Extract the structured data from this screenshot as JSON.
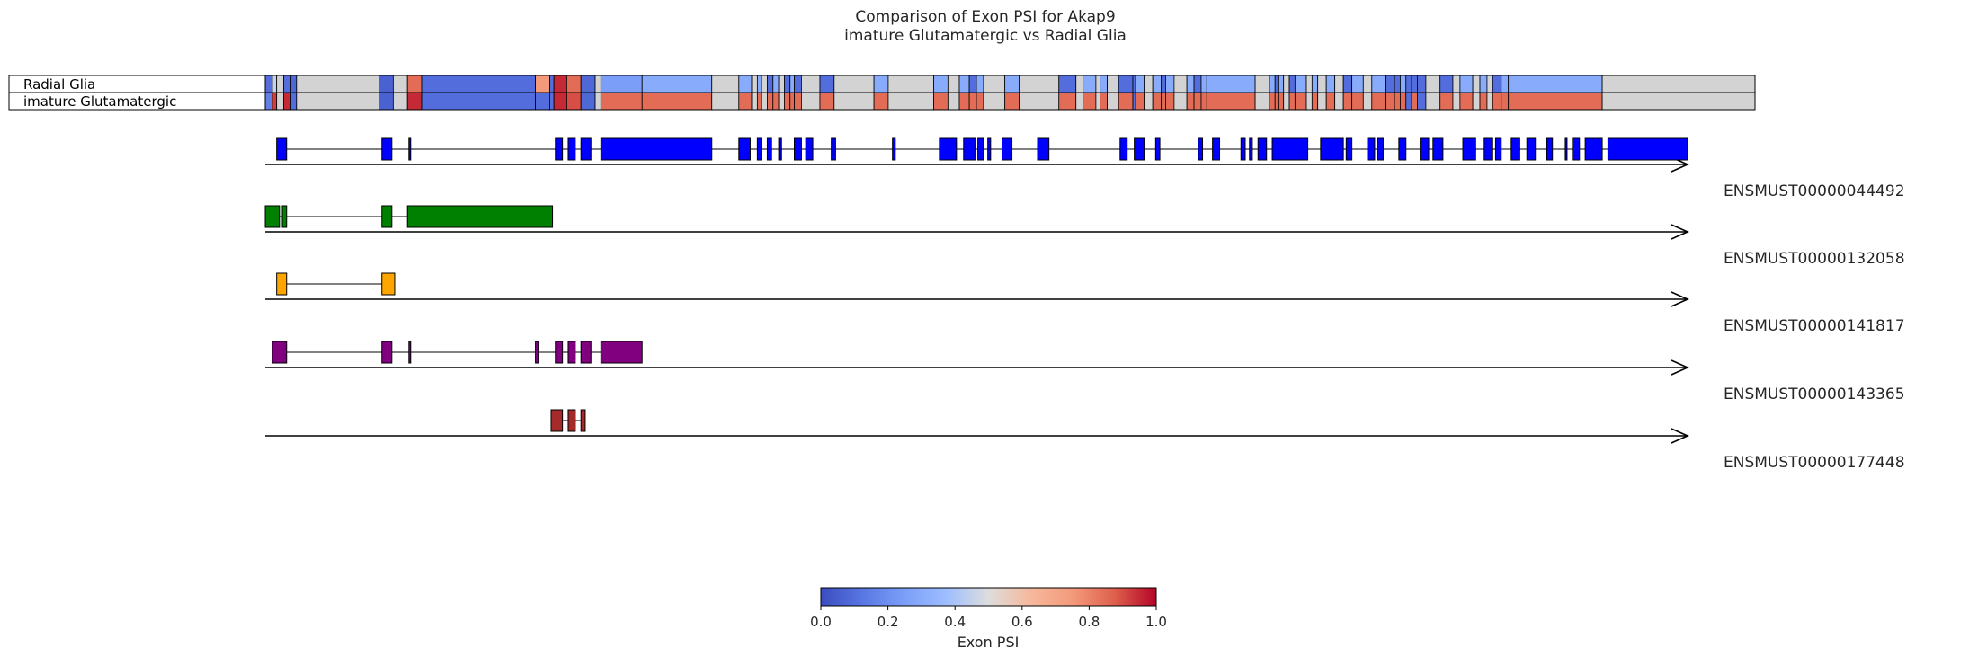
{
  "chart_data": {
    "type": "heatmap",
    "title": "Comparison of Exon PSI for Akap9",
    "subtitle": "imature Glutamatergic vs Radial Glia",
    "conditions": [
      {
        "name": "Radial Glia"
      },
      {
        "name": "imature Glutamatergic"
      }
    ],
    "genomic_span": [
      0,
      1000
    ],
    "psi_segments": [
      {
        "start": 0,
        "end": 5,
        "psi": [
          0.1,
          0.15
        ]
      },
      {
        "start": 5,
        "end": 8,
        "psi": [
          0.45,
          0.92
        ]
      },
      {
        "start": 8,
        "end": 13,
        "psi": [
          null,
          null
        ]
      },
      {
        "start": 13,
        "end": 18,
        "psi": [
          0.1,
          0.95
        ]
      },
      {
        "start": 18,
        "end": 22,
        "psi": [
          0.08,
          0.1
        ]
      },
      {
        "start": 22,
        "end": 80,
        "psi": [
          null,
          null
        ]
      },
      {
        "start": 80,
        "end": 90,
        "psi": [
          0.06,
          0.06
        ]
      },
      {
        "start": 90,
        "end": 100,
        "psi": [
          null,
          null
        ]
      },
      {
        "start": 100,
        "end": 110,
        "psi": [
          0.85,
          0.95
        ]
      },
      {
        "start": 110,
        "end": 190,
        "psi": [
          0.1,
          0.1
        ]
      },
      {
        "start": 190,
        "end": 200,
        "psi": [
          0.75,
          0.1
        ]
      },
      {
        "start": 200,
        "end": 203,
        "psi": [
          0.1,
          0.1
        ]
      },
      {
        "start": 203,
        "end": 212,
        "psi": [
          0.95,
          0.95
        ]
      },
      {
        "start": 212,
        "end": 222,
        "psi": [
          0.85,
          0.9
        ]
      },
      {
        "start": 222,
        "end": 232,
        "psi": [
          0.08,
          0.08
        ]
      },
      {
        "start": 232,
        "end": 236,
        "psi": [
          null,
          null
        ]
      },
      {
        "start": 236,
        "end": 265,
        "psi": [
          0.25,
          0.85
        ]
      },
      {
        "start": 265,
        "end": 314,
        "psi": [
          0.3,
          0.85
        ]
      },
      {
        "start": 314,
        "end": 333,
        "psi": [
          null,
          null
        ]
      },
      {
        "start": 333,
        "end": 342,
        "psi": [
          0.3,
          0.85
        ]
      },
      {
        "start": 342,
        "end": 346,
        "psi": [
          null,
          null
        ]
      },
      {
        "start": 346,
        "end": 349,
        "psi": [
          0.3,
          0.85
        ]
      },
      {
        "start": 349,
        "end": 353,
        "psi": [
          null,
          null
        ]
      },
      {
        "start": 353,
        "end": 357,
        "psi": [
          0.1,
          0.85
        ]
      },
      {
        "start": 357,
        "end": 361,
        "psi": [
          0.3,
          0.85
        ]
      },
      {
        "start": 361,
        "end": 365,
        "psi": [
          null,
          null
        ]
      },
      {
        "start": 365,
        "end": 369,
        "psi": [
          0.1,
          0.85
        ]
      },
      {
        "start": 369,
        "end": 372,
        "psi": [
          0.3,
          0.85
        ]
      },
      {
        "start": 372,
        "end": 377,
        "psi": [
          0.1,
          0.85
        ]
      },
      {
        "start": 377,
        "end": 390,
        "psi": [
          null,
          null
        ]
      },
      {
        "start": 390,
        "end": 400,
        "psi": [
          0.1,
          0.85
        ]
      },
      {
        "start": 400,
        "end": 428,
        "psi": [
          null,
          null
        ]
      },
      {
        "start": 428,
        "end": 438,
        "psi": [
          0.3,
          0.85
        ]
      },
      {
        "start": 438,
        "end": 470,
        "psi": [
          null,
          null
        ]
      },
      {
        "start": 470,
        "end": 480,
        "psi": [
          0.3,
          0.85
        ]
      },
      {
        "start": 480,
        "end": 488,
        "psi": [
          null,
          null
        ]
      },
      {
        "start": 488,
        "end": 495,
        "psi": [
          0.3,
          0.85
        ]
      },
      {
        "start": 495,
        "end": 500,
        "psi": [
          0.1,
          0.85
        ]
      },
      {
        "start": 500,
        "end": 505,
        "psi": [
          0.3,
          0.85
        ]
      },
      {
        "start": 505,
        "end": 520,
        "psi": [
          null,
          null
        ]
      },
      {
        "start": 520,
        "end": 530,
        "psi": [
          0.3,
          0.85
        ]
      },
      {
        "start": 530,
        "end": 558,
        "psi": [
          null,
          null
        ]
      },
      {
        "start": 558,
        "end": 570,
        "psi": [
          0.1,
          0.85
        ]
      },
      {
        "start": 570,
        "end": 575,
        "psi": [
          null,
          null
        ]
      },
      {
        "start": 575,
        "end": 584,
        "psi": [
          0.3,
          0.85
        ]
      },
      {
        "start": 584,
        "end": 587,
        "psi": [
          null,
          null
        ]
      },
      {
        "start": 587,
        "end": 592,
        "psi": [
          0.3,
          0.85
        ]
      },
      {
        "start": 592,
        "end": 600,
        "psi": [
          null,
          null
        ]
      },
      {
        "start": 600,
        "end": 610,
        "psi": [
          0.1,
          0.85
        ]
      },
      {
        "start": 610,
        "end": 612,
        "psi": [
          0.1,
          0.1
        ]
      },
      {
        "start": 612,
        "end": 618,
        "psi": [
          0.3,
          0.85
        ]
      },
      {
        "start": 618,
        "end": 624,
        "psi": [
          null,
          null
        ]
      },
      {
        "start": 624,
        "end": 630,
        "psi": [
          0.3,
          0.85
        ]
      },
      {
        "start": 630,
        "end": 633,
        "psi": [
          0.1,
          0.85
        ]
      },
      {
        "start": 633,
        "end": 639,
        "psi": [
          0.3,
          0.85
        ]
      },
      {
        "start": 639,
        "end": 648,
        "psi": [
          null,
          null
        ]
      },
      {
        "start": 648,
        "end": 653,
        "psi": [
          0.3,
          0.85
        ]
      },
      {
        "start": 653,
        "end": 658,
        "psi": [
          0.1,
          0.85
        ]
      },
      {
        "start": 658,
        "end": 662,
        "psi": [
          0.3,
          0.85
        ]
      },
      {
        "start": 662,
        "end": 696,
        "psi": [
          0.3,
          0.85
        ]
      },
      {
        "start": 696,
        "end": 706,
        "psi": [
          null,
          null
        ]
      },
      {
        "start": 706,
        "end": 710,
        "psi": [
          0.3,
          0.85
        ]
      },
      {
        "start": 710,
        "end": 712,
        "psi": [
          0.1,
          0.85
        ]
      },
      {
        "start": 712,
        "end": 716,
        "psi": [
          0.3,
          0.85
        ]
      },
      {
        "start": 716,
        "end": 720,
        "psi": [
          null,
          null
        ]
      },
      {
        "start": 720,
        "end": 724,
        "psi": [
          0.1,
          0.85
        ]
      },
      {
        "start": 724,
        "end": 732,
        "psi": [
          0.3,
          0.85
        ]
      },
      {
        "start": 732,
        "end": 736,
        "psi": [
          null,
          null
        ]
      },
      {
        "start": 736,
        "end": 740,
        "psi": [
          0.3,
          0.85
        ]
      },
      {
        "start": 740,
        "end": 746,
        "psi": [
          null,
          null
        ]
      },
      {
        "start": 746,
        "end": 752,
        "psi": [
          0.3,
          0.85
        ]
      },
      {
        "start": 752,
        "end": 758,
        "psi": [
          null,
          null
        ]
      },
      {
        "start": 758,
        "end": 764,
        "psi": [
          0.1,
          0.85
        ]
      },
      {
        "start": 764,
        "end": 772,
        "psi": [
          0.3,
          0.85
        ]
      },
      {
        "start": 772,
        "end": 778,
        "psi": [
          null,
          null
        ]
      },
      {
        "start": 778,
        "end": 788,
        "psi": [
          0.3,
          0.85
        ]
      },
      {
        "start": 788,
        "end": 794,
        "psi": [
          0.1,
          0.85
        ]
      },
      {
        "start": 794,
        "end": 798,
        "psi": [
          0.1,
          0.85
        ]
      },
      {
        "start": 798,
        "end": 802,
        "psi": [
          0.3,
          0.85
        ]
      },
      {
        "start": 802,
        "end": 806,
        "psi": [
          0.1,
          0.1
        ]
      },
      {
        "start": 806,
        "end": 810,
        "psi": [
          0.1,
          0.85
        ]
      },
      {
        "start": 810,
        "end": 816,
        "psi": [
          0.1,
          0.1
        ]
      },
      {
        "start": 816,
        "end": 826,
        "psi": [
          null,
          null
        ]
      },
      {
        "start": 826,
        "end": 835,
        "psi": [
          0.1,
          0.85
        ]
      },
      {
        "start": 835,
        "end": 840,
        "psi": [
          null,
          null
        ]
      },
      {
        "start": 840,
        "end": 849,
        "psi": [
          0.3,
          0.85
        ]
      },
      {
        "start": 849,
        "end": 854,
        "psi": [
          null,
          null
        ]
      },
      {
        "start": 854,
        "end": 859,
        "psi": [
          0.3,
          0.85
        ]
      },
      {
        "start": 859,
        "end": 863,
        "psi": [
          null,
          null
        ]
      },
      {
        "start": 863,
        "end": 869,
        "psi": [
          0.1,
          0.85
        ]
      },
      {
        "start": 869,
        "end": 874,
        "psi": [
          0.3,
          0.85
        ]
      },
      {
        "start": 874,
        "end": 940,
        "psi": [
          0.3,
          0.85
        ]
      },
      {
        "start": 940,
        "end": 1050,
        "psi": [
          null,
          null
        ]
      }
    ],
    "transcripts": [
      {
        "id": "ENSMUST00000044492",
        "color": "#0000ff",
        "exons": [
          [
            8,
            15
          ],
          [
            82,
            89
          ],
          [
            101,
            102
          ],
          [
            204,
            209
          ],
          [
            213,
            218
          ],
          [
            222,
            229
          ],
          [
            236,
            314
          ],
          [
            333,
            341
          ],
          [
            346,
            349
          ],
          [
            353,
            356
          ],
          [
            361,
            363
          ],
          [
            372,
            377
          ],
          [
            380,
            385
          ],
          [
            398,
            401
          ],
          [
            441,
            443
          ],
          [
            474,
            486
          ],
          [
            491,
            499
          ],
          [
            501,
            505
          ],
          [
            508,
            510
          ],
          [
            518,
            525
          ],
          [
            543,
            551
          ],
          [
            601,
            606
          ],
          [
            611,
            618
          ],
          [
            626,
            629
          ],
          [
            656,
            659
          ],
          [
            666,
            671
          ],
          [
            686,
            689
          ],
          [
            692,
            694
          ],
          [
            698,
            704
          ],
          [
            708,
            733
          ],
          [
            742,
            758
          ],
          [
            760,
            764
          ],
          [
            775,
            780
          ],
          [
            782,
            786
          ],
          [
            797,
            802
          ],
          [
            812,
            818
          ],
          [
            821,
            828
          ],
          [
            842,
            851
          ],
          [
            857,
            863
          ],
          [
            865,
            869
          ],
          [
            876,
            882
          ],
          [
            887,
            893
          ],
          [
            901,
            905
          ],
          [
            914,
            915
          ],
          [
            919,
            924
          ],
          [
            928,
            940
          ],
          [
            944,
            1000
          ]
        ]
      },
      {
        "id": "ENSMUST00000132058",
        "color": "#008000",
        "exons": [
          [
            0,
            10
          ],
          [
            12,
            15
          ],
          [
            82,
            89
          ],
          [
            100,
            202
          ]
        ]
      },
      {
        "id": "ENSMUST00000141817",
        "color": "#ffa500",
        "exons": [
          [
            8,
            15
          ],
          [
            82,
            91
          ]
        ]
      },
      {
        "id": "ENSMUST00000143365",
        "color": "#800080",
        "exons": [
          [
            5,
            15
          ],
          [
            82,
            89
          ],
          [
            101,
            102
          ],
          [
            190,
            192
          ],
          [
            204,
            209
          ],
          [
            213,
            218
          ],
          [
            222,
            229
          ],
          [
            236,
            265
          ]
        ]
      },
      {
        "id": "ENSMUST00000177448",
        "color": "#a52a2a",
        "exons": [
          [
            201,
            209
          ],
          [
            213,
            218
          ],
          [
            222,
            225
          ]
        ]
      }
    ],
    "colorbar": {
      "label": "Exon PSI",
      "colormap": "coolwarm",
      "range": [
        0,
        1
      ],
      "ticks": [
        "0.0",
        "0.2",
        "0.4",
        "0.6",
        "0.8",
        "1.0"
      ]
    },
    "missing_color": "#d3d3d3"
  }
}
